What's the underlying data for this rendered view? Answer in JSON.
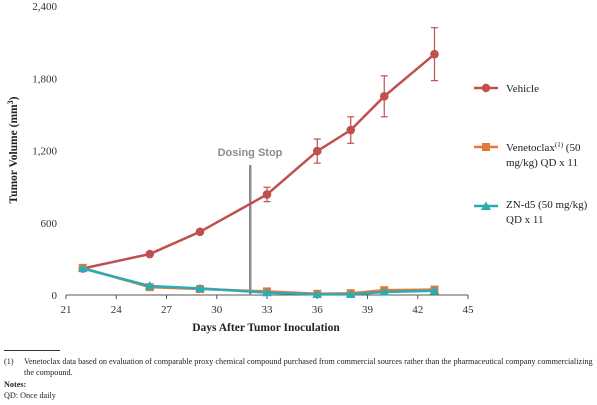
{
  "chart_data": {
    "type": "line",
    "xlabel": "Days After Tumor Inoculation",
    "ylabel": "Tumor Volume (mm³)",
    "xlim": [
      21,
      45
    ],
    "ylim": [
      0,
      2400
    ],
    "xticks": [
      "21",
      "24",
      "27",
      "30",
      "33",
      "36",
      "39",
      "42",
      "45"
    ],
    "yticks": [
      "0",
      "600",
      "1,200",
      "1,800",
      "2,400"
    ],
    "grid": false,
    "legend_position": "right",
    "series": [
      {
        "name": "Vehicle",
        "color": "#c0504d",
        "marker": "circle",
        "x": [
          22,
          26,
          29,
          33,
          36,
          38,
          40,
          43
        ],
        "y": [
          220,
          340,
          525,
          835,
          1195,
          1370,
          1650,
          2000
        ],
        "error": [
          0,
          0,
          0,
          60,
          100,
          110,
          170,
          220
        ]
      },
      {
        "name": "Venetoclax(1) (50 mg/kg) QD x 11",
        "color": "#e07b39",
        "marker": "square",
        "x": [
          22,
          26,
          29,
          33,
          36,
          38,
          40,
          43
        ],
        "y": [
          225,
          65,
          50,
          30,
          10,
          15,
          40,
          45
        ],
        "error": [
          0,
          0,
          0,
          0,
          0,
          0,
          0,
          0
        ]
      },
      {
        "name": "ZN-d5 (50 mg/kg) QD x 11",
        "color": "#2bacb5",
        "marker": "triangle",
        "x": [
          22,
          26,
          29,
          33,
          36,
          38,
          40,
          43
        ],
        "y": [
          220,
          75,
          55,
          20,
          5,
          5,
          25,
          35
        ],
        "error": [
          0,
          0,
          0,
          0,
          0,
          0,
          0,
          0
        ]
      }
    ],
    "annotations": [
      {
        "text": "Dosing Stop",
        "x": 32
      }
    ]
  },
  "legend": {
    "vehicle": "Vehicle",
    "venetoclax_line1": "Venetoclax",
    "venetoclax_sup": "(1)",
    "venetoclax_line1_rest": " (50",
    "venetoclax_line2": "mg/kg) QD x 11",
    "znd5_line1": "ZN-d5 (50 mg/kg)",
    "znd5_line2": "QD x 11"
  },
  "axis_text": {
    "ylabel_main": "Tumor Volume (mm",
    "ylabel_sup": "3",
    "ylabel_end": ")"
  },
  "footnotes": {
    "mark": "(1)",
    "text": "Venetoclax data based on evaluation of comparable proxy chemical compound purchased from commercial sources rather than the pharmaceutical company commercializing the compound.",
    "notes_heading": "Notes:",
    "notes_line": "QD: Once daily"
  }
}
